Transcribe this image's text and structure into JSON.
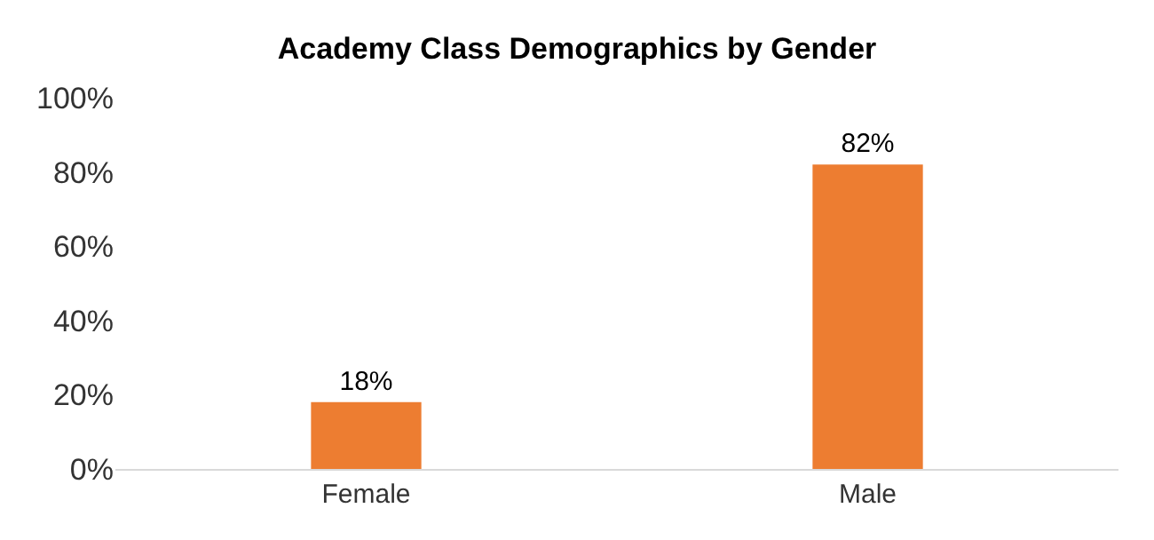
{
  "chart_data": {
    "type": "bar",
    "title": "Academy Class Demographics by Gender",
    "categories": [
      "Female",
      "Male"
    ],
    "values": [
      18,
      82
    ],
    "value_labels": [
      "18%",
      "82%"
    ],
    "color": "#ed7d31",
    "ylim": [
      0,
      100
    ],
    "yticks": [
      {
        "value": 0,
        "label": "0%"
      },
      {
        "value": 20,
        "label": "20%"
      },
      {
        "value": 40,
        "label": "40%"
      },
      {
        "value": 60,
        "label": "60%"
      },
      {
        "value": 80,
        "label": "80%"
      },
      {
        "value": 100,
        "label": "100%"
      }
    ],
    "grid": false
  }
}
